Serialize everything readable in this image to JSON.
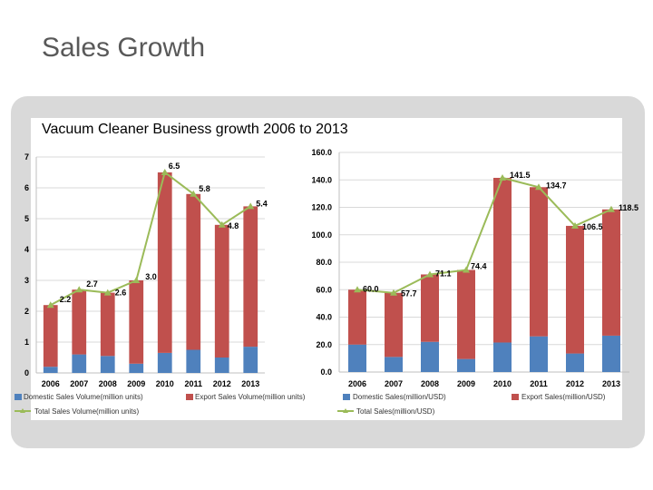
{
  "slide": {
    "title": "Sales Growth",
    "subtitle": "Vacuum Cleaner Business growth 2006 to 2013"
  },
  "colors": {
    "domestic": "#4f81bd",
    "export": "#c0504d",
    "total": "#9bbb59",
    "panel": "#d9d9d9",
    "grid": "#d9d9d9"
  },
  "chart_data": [
    {
      "type": "bar",
      "stacked": true,
      "categories": [
        "2006",
        "2007",
        "2008",
        "2009",
        "2010",
        "2011",
        "2012",
        "2013"
      ],
      "series": [
        {
          "name": "Domestic Sales Volume(million units)",
          "values": [
            0.2,
            0.6,
            0.55,
            0.3,
            0.65,
            0.75,
            0.5,
            0.85
          ]
        },
        {
          "name": "Export Sales Volume(million units)",
          "values": [
            2.0,
            2.1,
            2.05,
            2.7,
            5.85,
            5.05,
            4.3,
            4.55
          ]
        }
      ],
      "line_series": {
        "name": "Total Sales Volume(million units)",
        "values": [
          2.2,
          2.7,
          2.6,
          3.0,
          6.5,
          5.8,
          4.8,
          5.4
        ],
        "labels": [
          "2.2",
          "2.7",
          "2.6",
          "3.0",
          "6.5",
          "5.8",
          "4.8",
          "5.4"
        ]
      },
      "ylim": [
        0,
        7
      ],
      "yticks": [
        "0",
        "1",
        "2",
        "3",
        "4",
        "5",
        "6",
        "7"
      ],
      "grid": true,
      "legend": "bottom"
    },
    {
      "type": "bar",
      "stacked": true,
      "categories": [
        "2006",
        "2007",
        "2008",
        "2009",
        "2010",
        "2011",
        "2012",
        "2013"
      ],
      "series": [
        {
          "name": "Domestic Sales(million/USD)",
          "values": [
            20.0,
            11.0,
            22.0,
            9.5,
            21.5,
            26.0,
            13.5,
            26.5
          ]
        },
        {
          "name": "Export Sales(million/USD)",
          "values": [
            40.0,
            46.7,
            49.1,
            64.9,
            120.0,
            108.7,
            93.0,
            92.0
          ]
        }
      ],
      "line_series": {
        "name": "Total Sales(million/USD)",
        "values": [
          60.0,
          57.7,
          71.1,
          74.4,
          141.5,
          134.7,
          106.5,
          118.5
        ],
        "labels": [
          "60.0",
          "57.7",
          "71.1",
          "74.4",
          "141.5",
          "134.7",
          "106.5",
          "118.5"
        ]
      },
      "ylim": [
        0,
        160
      ],
      "yticks": [
        "0.0",
        "20.0",
        "40.0",
        "60.0",
        "80.0",
        "100.0",
        "120.0",
        "140.0",
        "160.0"
      ],
      "grid": true,
      "legend": "bottom"
    }
  ]
}
